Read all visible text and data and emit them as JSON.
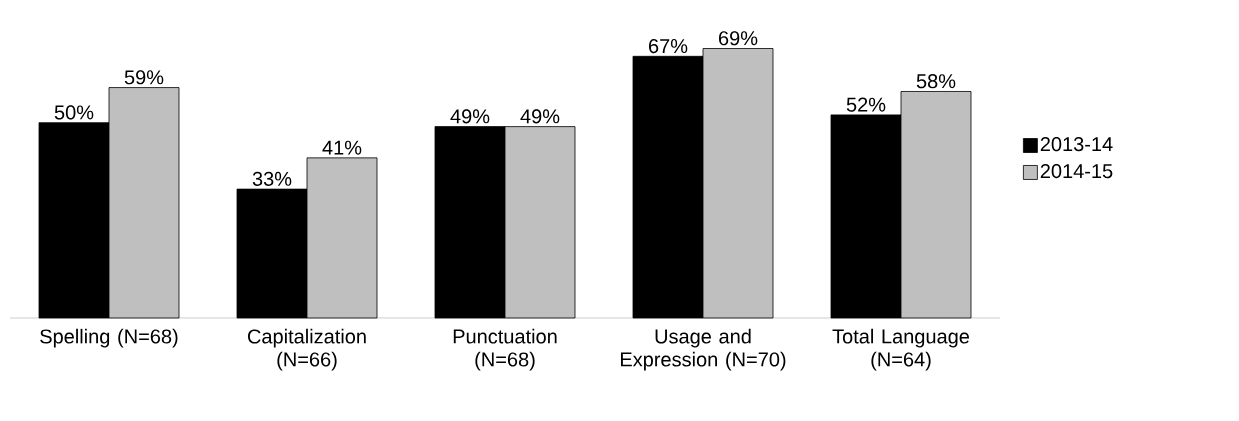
{
  "chart_data": {
    "type": "bar",
    "categories": [
      "Spelling (N=68)",
      "Capitalization (N=66)",
      "Punctuation (N=68)",
      "Usage and Expression (N=70)",
      "Total Language (N=64)"
    ],
    "series": [
      {
        "name": "2013-14",
        "color": "#000000",
        "values": [
          50,
          33,
          49,
          67,
          52
        ],
        "value_labels": [
          "50%",
          "33%",
          "49%",
          "67%",
          "52%"
        ]
      },
      {
        "name": "2014-15",
        "color": "#bfbfbf",
        "values": [
          59,
          41,
          49,
          69,
          58
        ],
        "value_labels": [
          "59%",
          "41%",
          "49%",
          "69%",
          "58%"
        ]
      }
    ],
    "legend": "right"
  }
}
